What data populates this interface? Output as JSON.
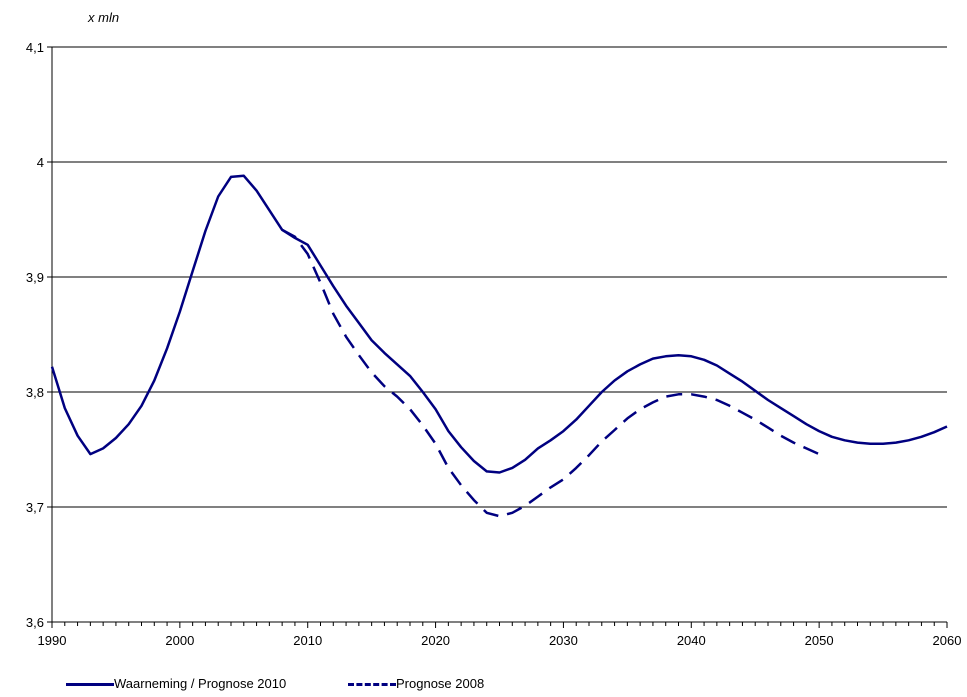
{
  "chart_data": {
    "type": "line",
    "y_unit_label": "x  mln",
    "xlim": [
      1990,
      2060
    ],
    "ylim": [
      3.6,
      4.1
    ],
    "x_ticks": [
      1990,
      2000,
      2010,
      2020,
      2030,
      2040,
      2050,
      2060
    ],
    "y_ticks": [
      {
        "value": 3.6,
        "label": "3,6"
      },
      {
        "value": 3.7,
        "label": "3,7"
      },
      {
        "value": 3.8,
        "label": "3,8"
      },
      {
        "value": 3.9,
        "label": "3,9"
      },
      {
        "value": 4.0,
        "label": "4"
      },
      {
        "value": 4.1,
        "label": "4,1"
      }
    ],
    "grid": true,
    "legend_position": "bottom",
    "series": [
      {
        "name": "Waarneming / Prognose 2010",
        "style": "solid",
        "color": "#000080",
        "points": [
          [
            1990,
            3.822
          ],
          [
            1991,
            3.786
          ],
          [
            1992,
            3.762
          ],
          [
            1993,
            3.746
          ],
          [
            1994,
            3.751
          ],
          [
            1995,
            3.76
          ],
          [
            1996,
            3.772
          ],
          [
            1997,
            3.788
          ],
          [
            1998,
            3.81
          ],
          [
            1999,
            3.838
          ],
          [
            2000,
            3.87
          ],
          [
            2001,
            3.905
          ],
          [
            2002,
            3.94
          ],
          [
            2003,
            3.97
          ],
          [
            2004,
            3.987
          ],
          [
            2005,
            3.988
          ],
          [
            2006,
            3.975
          ],
          [
            2007,
            3.958
          ],
          [
            2008,
            3.941
          ],
          [
            2009,
            3.934
          ],
          [
            2010,
            3.928
          ],
          [
            2011,
            3.91
          ],
          [
            2012,
            3.892
          ],
          [
            2013,
            3.875
          ],
          [
            2014,
            3.86
          ],
          [
            2015,
            3.845
          ],
          [
            2016,
            3.834
          ],
          [
            2017,
            3.824
          ],
          [
            2018,
            3.814
          ],
          [
            2019,
            3.8
          ],
          [
            2020,
            3.785
          ],
          [
            2021,
            3.766
          ],
          [
            2022,
            3.752
          ],
          [
            2023,
            3.74
          ],
          [
            2024,
            3.731
          ],
          [
            2025,
            3.73
          ],
          [
            2026,
            3.734
          ],
          [
            2027,
            3.741
          ],
          [
            2028,
            3.751
          ],
          [
            2029,
            3.758
          ],
          [
            2030,
            3.766
          ],
          [
            2031,
            3.776
          ],
          [
            2032,
            3.788
          ],
          [
            2033,
            3.8
          ],
          [
            2034,
            3.81
          ],
          [
            2035,
            3.818
          ],
          [
            2036,
            3.824
          ],
          [
            2037,
            3.829
          ],
          [
            2038,
            3.831
          ],
          [
            2039,
            3.832
          ],
          [
            2040,
            3.831
          ],
          [
            2041,
            3.828
          ],
          [
            2042,
            3.823
          ],
          [
            2043,
            3.816
          ],
          [
            2044,
            3.809
          ],
          [
            2045,
            3.801
          ],
          [
            2046,
            3.793
          ],
          [
            2047,
            3.786
          ],
          [
            2048,
            3.779
          ],
          [
            2049,
            3.772
          ],
          [
            2050,
            3.766
          ],
          [
            2051,
            3.761
          ],
          [
            2052,
            3.758
          ],
          [
            2053,
            3.756
          ],
          [
            2054,
            3.755
          ],
          [
            2055,
            3.755
          ],
          [
            2056,
            3.756
          ],
          [
            2057,
            3.758
          ],
          [
            2058,
            3.761
          ],
          [
            2059,
            3.765
          ],
          [
            2060,
            3.77
          ]
        ]
      },
      {
        "name": "Prognose 2008",
        "style": "dashed",
        "color": "#000080",
        "points": [
          [
            2008,
            3.941
          ],
          [
            2009,
            3.935
          ],
          [
            2010,
            3.92
          ],
          [
            2011,
            3.895
          ],
          [
            2012,
            3.868
          ],
          [
            2013,
            3.848
          ],
          [
            2014,
            3.832
          ],
          [
            2015,
            3.817
          ],
          [
            2016,
            3.805
          ],
          [
            2017,
            3.796
          ],
          [
            2018,
            3.785
          ],
          [
            2019,
            3.771
          ],
          [
            2020,
            3.755
          ],
          [
            2021,
            3.734
          ],
          [
            2022,
            3.719
          ],
          [
            2023,
            3.706
          ],
          [
            2024,
            3.695
          ],
          [
            2025,
            3.692
          ],
          [
            2026,
            3.695
          ],
          [
            2027,
            3.701
          ],
          [
            2028,
            3.709
          ],
          [
            2029,
            3.717
          ],
          [
            2030,
            3.724
          ],
          [
            2031,
            3.734
          ],
          [
            2032,
            3.745
          ],
          [
            2033,
            3.757
          ],
          [
            2034,
            3.767
          ],
          [
            2035,
            3.777
          ],
          [
            2036,
            3.785
          ],
          [
            2037,
            3.791
          ],
          [
            2038,
            3.796
          ],
          [
            2039,
            3.798
          ],
          [
            2040,
            3.798
          ],
          [
            2041,
            3.796
          ],
          [
            2042,
            3.793
          ],
          [
            2043,
            3.788
          ],
          [
            2044,
            3.782
          ],
          [
            2045,
            3.776
          ],
          [
            2046,
            3.769
          ],
          [
            2047,
            3.762
          ],
          [
            2048,
            3.756
          ],
          [
            2049,
            3.751
          ],
          [
            2050,
            3.746
          ]
        ]
      }
    ]
  }
}
